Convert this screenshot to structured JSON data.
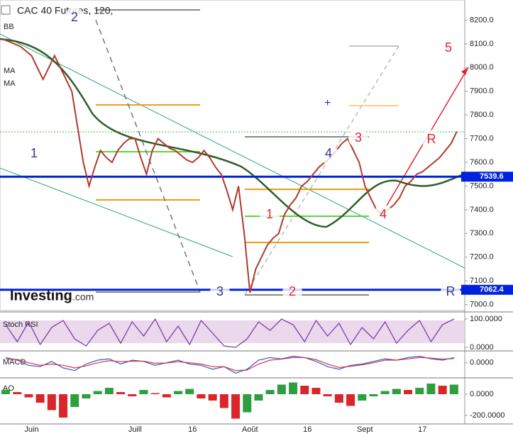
{
  "chart_data": {
    "type": "line",
    "title": "CAC 40 Futures, 120,",
    "indicator_labels": [
      "BB",
      "MA",
      "MA"
    ],
    "watermark": "Investing",
    "watermark_suffix": ".com",
    "color": "#b03a2e",
    "categories": [
      null,
      null,
      null,
      null,
      null,
      "Juin",
      null,
      null,
      null,
      null,
      null,
      null,
      null,
      null,
      null,
      null,
      null,
      null,
      null,
      null,
      null,
      null,
      null,
      "Juill",
      null,
      null,
      null,
      null,
      null,
      null,
      null,
      null,
      null,
      "16",
      null,
      null,
      null,
      null,
      null,
      null,
      null,
      null,
      null,
      "Août",
      null,
      null,
      null,
      null,
      null,
      null,
      null,
      null,
      null,
      "16",
      null,
      null,
      null,
      null,
      null,
      null,
      null,
      null,
      null,
      "Sept",
      null,
      null,
      null,
      null,
      null,
      null,
      null,
      null,
      null,
      "17",
      null,
      null,
      null,
      null,
      null,
      null
    ],
    "values": [
      8120,
      8110,
      8100,
      8090,
      8070,
      8050,
      8000,
      7950,
      8000,
      8050,
      8000,
      7950,
      7900,
      7750,
      7600,
      7500,
      7580,
      7650,
      7620,
      7600,
      7650,
      7680,
      7700,
      7700,
      7620,
      7550,
      7650,
      7700,
      7680,
      7660,
      7650,
      7630,
      7610,
      7600,
      7620,
      7650,
      7620,
      7580,
      7550,
      7480,
      7400,
      7500,
      7300,
      7050,
      7150,
      7200,
      7250,
      7280,
      7300,
      7380,
      7420,
      7450,
      7500,
      7520,
      7550,
      7580,
      7600,
      7620,
      7650,
      7680,
      7700,
      7650,
      7600,
      7500,
      7450,
      7400,
      7380,
      7400,
      7420,
      7450,
      7500,
      7520,
      7550,
      7560,
      7580,
      7600,
      7620,
      7650,
      7680,
      7730
    ],
    "ylim": [
      6975,
      8285
    ],
    "yticks": [
      {
        "value": 7000,
        "label": "7000.0"
      },
      {
        "value": 7100,
        "label": "7100.0"
      },
      {
        "value": 7200,
        "label": "7200.0"
      },
      {
        "value": 7300,
        "label": "7300.0"
      },
      {
        "value": 7400,
        "label": "7400.0"
      },
      {
        "value": 7500,
        "label": "7500.0"
      },
      {
        "value": 7600,
        "label": "7600.0"
      },
      {
        "value": 7700,
        "label": "7700.0"
      },
      {
        "value": 7800,
        "label": "7800.0"
      },
      {
        "value": 7900,
        "label": "7900.0"
      },
      {
        "value": 8000,
        "label": "8000.0"
      },
      {
        "value": 8100,
        "label": "8100.0"
      },
      {
        "value": 8200,
        "label": "8200.0"
      }
    ],
    "reference_lines": [
      7539.6,
      7062.4
    ],
    "reference_color": "#0022dd",
    "annotations": [
      {
        "text": "2",
        "color": "#333399"
      },
      {
        "text": "1",
        "color": "#333399"
      },
      {
        "text": "3",
        "color": "#333399"
      },
      {
        "text": "2",
        "color": "#e8222b"
      },
      {
        "text": "1",
        "color": "#e8222b"
      },
      {
        "text": "4",
        "color": "#333399"
      },
      {
        "text": "3",
        "color": "#e8222b"
      },
      {
        "text": "4",
        "color": "#e8222b"
      },
      {
        "text": "5",
        "color": "#e8222b"
      },
      {
        "text": "R",
        "color": "#e8222b"
      },
      {
        "text": "R",
        "color": "#333399"
      }
    ],
    "stoch": {
      "label": "Stoch RSI",
      "color": "#7a3fa0",
      "values": [
        80,
        20,
        90,
        10,
        70,
        95,
        30,
        5,
        60,
        85,
        15,
        90,
        40,
        100,
        20,
        75,
        10,
        95,
        50,
        5,
        0,
        30,
        90,
        60,
        100,
        80,
        20,
        95,
        40,
        85,
        10,
        70,
        30,
        90,
        15,
        60,
        95,
        20,
        80,
        100
      ],
      "ylim": [
        -7.5,
        117.5
      ],
      "yticks": [
        {
          "value": 100,
          "label": "100.0000"
        },
        {
          "value": 0,
          "label": "0.0000"
        }
      ]
    },
    "macd": {
      "label": "MACD",
      "color": "#2a5bd7",
      "signal_color": "#d9363e",
      "values": [
        20,
        10,
        -10,
        -15,
        5,
        -20,
        -30,
        -5,
        10,
        15,
        -5,
        10,
        5,
        -10,
        0,
        10,
        -5,
        -10,
        -25,
        -15,
        -40,
        -25,
        10,
        20,
        15,
        25,
        20,
        5,
        -15,
        -25,
        -10,
        -5,
        5,
        15,
        10,
        20,
        25,
        15,
        10,
        20
      ],
      "signal": [
        15,
        12,
        0,
        -10,
        -5,
        -10,
        -20,
        -12,
        0,
        8,
        4,
        6,
        6,
        -2,
        -1,
        4,
        0,
        -5,
        -15,
        -15,
        -30,
        -28,
        -5,
        10,
        14,
        20,
        20,
        12,
        -5,
        -18,
        -14,
        -8,
        0,
        10,
        10,
        15,
        20,
        18,
        14,
        16
      ],
      "ylim": [
        -50,
        40
      ],
      "yticks": [
        {
          "value": 0,
          "label": "0.0000"
        }
      ]
    },
    "ao": {
      "label": "AO",
      "up_color": "#2e9e3e",
      "down_color": "#d9262b",
      "values": [
        40,
        20,
        -30,
        -80,
        -150,
        -220,
        -120,
        -40,
        30,
        60,
        20,
        -20,
        40,
        10,
        -30,
        30,
        50,
        -40,
        -60,
        -130,
        -230,
        -170,
        -60,
        40,
        90,
        110,
        80,
        60,
        -20,
        -80,
        -110,
        -60,
        -20,
        30,
        50,
        40,
        60,
        100,
        80,
        90
      ],
      "ylim": [
        -280,
        127
      ],
      "yticks": [
        {
          "value": 0,
          "label": "0.0000"
        },
        {
          "value": -200,
          "label": "-200.0000"
        }
      ]
    }
  }
}
